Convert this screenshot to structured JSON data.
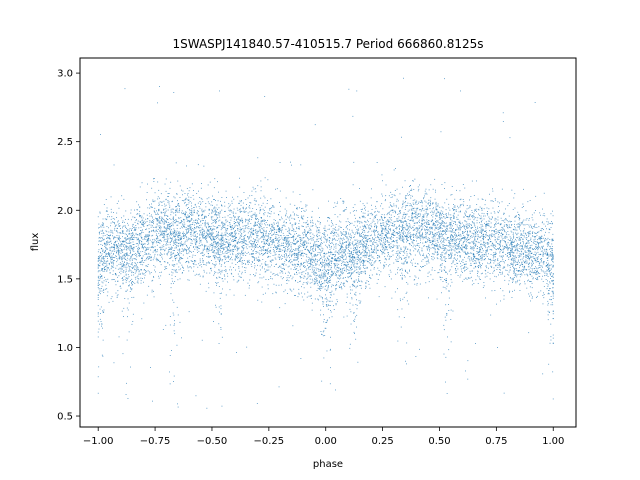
{
  "chart_data": {
    "type": "scatter",
    "title": "1SWASPJ141840.57-410515.7 Period 666860.8125s",
    "xlabel": "phase",
    "ylabel": "flux",
    "xlim": [
      -1.08,
      1.1
    ],
    "ylim": [
      0.42,
      3.11
    ],
    "xticks": [
      -1.0,
      -0.75,
      -0.5,
      -0.25,
      0.0,
      0.25,
      0.5,
      0.75,
      1.0
    ],
    "xtick_labels": [
      "−1.00",
      "−0.75",
      "−0.50",
      "−0.25",
      "0.00",
      "0.25",
      "0.50",
      "0.75",
      "1.00"
    ],
    "yticks": [
      0.5,
      1.0,
      1.5,
      2.0,
      2.5,
      3.0
    ],
    "ytick_labels": [
      "0.5",
      "1.0",
      "1.5",
      "2.0",
      "2.5",
      "3.0"
    ],
    "grid": false,
    "marker_color": "#1f77b4",
    "series": [
      {
        "phase_range": [
          -1.0,
          1.0
        ],
        "mean_flux_profile": {
          "phase": [
            -1.0,
            -0.9,
            -0.85,
            -0.8,
            -0.7,
            -0.6,
            -0.5,
            -0.4,
            -0.3,
            -0.2,
            -0.1,
            0.0,
            0.05,
            0.1,
            0.15,
            0.2,
            0.3,
            0.4,
            0.5,
            0.6,
            0.7,
            0.8,
            0.9,
            1.0
          ],
          "flux": [
            1.68,
            1.72,
            1.72,
            1.76,
            1.85,
            1.86,
            1.82,
            1.78,
            1.8,
            1.76,
            1.7,
            1.62,
            1.66,
            1.7,
            1.72,
            1.76,
            1.86,
            1.87,
            1.82,
            1.78,
            1.8,
            1.74,
            1.7,
            1.68
          ]
        },
        "flux_spread_sd": 0.15,
        "flux_range": [
          0.55,
          3.0
        ],
        "low_flux_dips_at_phase": [
          -1.0,
          -0.87,
          -0.66,
          -0.47,
          0.0,
          0.13,
          0.34,
          0.53,
          1.0
        ]
      }
    ]
  }
}
